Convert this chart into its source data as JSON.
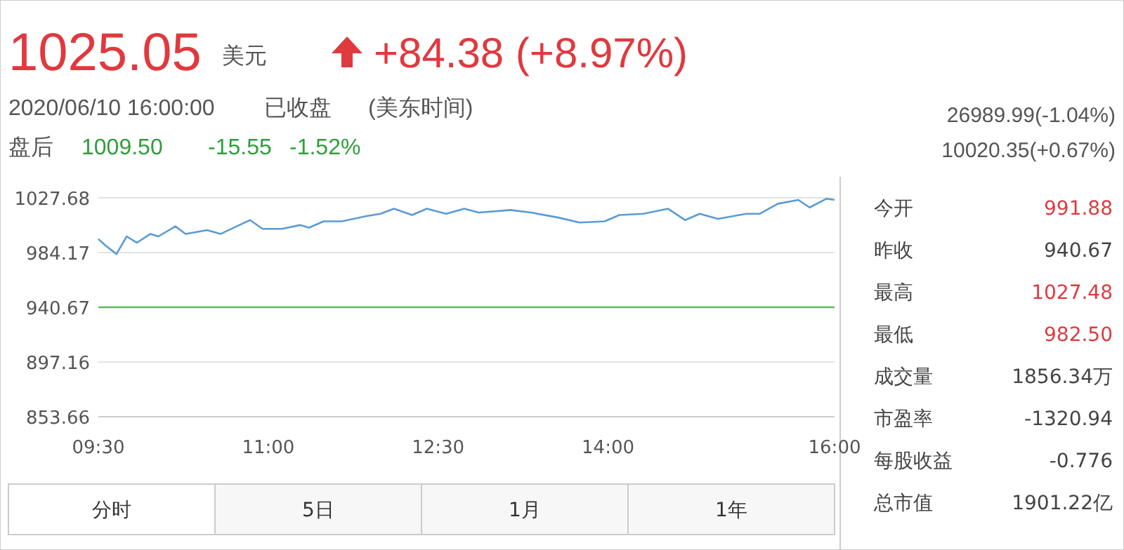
{
  "chart_data": {
    "type": "line",
    "title": "1025.05",
    "annotations": [
      "美元",
      "+84.38 (+8.97%)",
      "2020/06/10 16:00:00",
      "已收盘",
      "(美东时间)",
      "26989.99(-1.04%)",
      "盘后",
      "1009.50",
      "-15.55",
      "-1.52%",
      "10020.35(+0.67%)",
      "今开",
      "991.88",
      "昨收",
      "940.67",
      "最高",
      "1027.48",
      "最低",
      "982.50",
      "成交量",
      "1856.34万",
      "市盈率",
      "-1320.94",
      "每股收益",
      "-0.776",
      "总市值",
      "1901.22亿",
      "分时",
      "5日",
      "1月",
      "1年"
    ],
    "x": [
      9.5,
      9.56,
      9.66,
      9.75,
      9.84,
      9.96,
      10.03,
      10.18,
      10.27,
      10.46,
      10.58,
      10.84,
      10.95,
      11.12,
      11.28,
      11.36,
      11.49,
      11.65,
      11.86,
      11.99,
      12.11,
      12.27,
      12.4,
      12.57,
      12.73,
      12.86,
      13.14,
      13.32,
      13.56,
      13.75,
      13.97,
      14.1,
      14.31,
      14.53,
      14.68,
      14.81,
      14.97,
      15.22,
      15.34,
      15.5,
      15.68,
      15.78,
      15.93,
      16
    ],
    "series": [
      {
        "color": "#5b9bd5",
        "values": [
          995,
          990,
          983,
          997,
          992,
          999,
          997,
          1005,
          999,
          1002,
          999,
          1010,
          1003,
          1003,
          1006,
          1004,
          1009,
          1009,
          1013,
          1015,
          1019,
          1014,
          1019,
          1015,
          1019,
          1016,
          1018,
          1016,
          1012,
          1008,
          1009,
          1014,
          1015,
          1019,
          1010,
          1015,
          1011,
          1015,
          1015,
          1023,
          1026,
          1020,
          1027,
          1026
        ]
      }
    ],
    "xlim": [
      9.5,
      16
    ],
    "xticks": [
      {
        "value": 9.5,
        "label": "09:30"
      },
      {
        "value": 11,
        "label": "11:00"
      },
      {
        "value": 12.5,
        "label": "12:30"
      },
      {
        "value": 14,
        "label": "14:00"
      },
      {
        "value": 16,
        "label": "16:00"
      }
    ],
    "ylim": [
      853.66,
      1027.68
    ],
    "yticks": [
      853.66,
      897.16,
      940.67,
      984.17,
      1027.68
    ],
    "ref_lines": [
      {
        "axis": "y",
        "value": 940.67,
        "color": "#5cb85c"
      }
    ],
    "grid": "y"
  }
}
